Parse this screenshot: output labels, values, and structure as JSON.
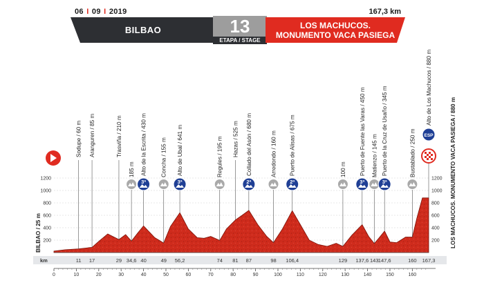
{
  "header": {
    "date_day": "06",
    "date_month": "09",
    "date_year": "2019",
    "distance": "167,3 km",
    "start_city": "BILBAO",
    "stage_number": "13",
    "stage_label": "ETAPA / STAGE",
    "finish_line1": "LOS MACHUCOS.",
    "finish_line2": "MONUMENTO VACA PASIEGA"
  },
  "start_label": "BILBAO / 25 m",
  "finish_label": "LOS MACHUCOS. MONUMENTO VACA PASIEGA / 880 m",
  "y_axis_ticks": [
    "1200",
    "1000",
    "800",
    "600",
    "400",
    "200"
  ],
  "x_axis_ticks": [
    "0",
    "10",
    "20",
    "30",
    "40",
    "50",
    "60",
    "70",
    "80",
    "90",
    "100",
    "110",
    "120",
    "130",
    "140",
    "150",
    "160"
  ],
  "km_row_label": "km",
  "km_points": [
    "11",
    "17",
    "29",
    "34,6",
    "40",
    "49",
    "56,2",
    "74",
    "81",
    "87",
    "98",
    "106,4",
    "129",
    "137,6",
    "143",
    "147,6",
    "160",
    "167,3"
  ],
  "waypoints": [
    {
      "label": "Sodupe / 60 m",
      "type": "none"
    },
    {
      "label": "Aranguren / 85 m",
      "type": "none"
    },
    {
      "label": "Trasviña / 210 m",
      "type": "none"
    },
    {
      "label": "185 m",
      "type": "gray"
    },
    {
      "label": "Alto de la Escrita / 430 m",
      "type": "cat3"
    },
    {
      "label": "Concha / 155 m",
      "type": "gray"
    },
    {
      "label": "Alto de Ubal / 641 m",
      "type": "cat3"
    },
    {
      "label": "Regules / 195 m",
      "type": "gray"
    },
    {
      "label": "Hazas / 525 m",
      "type": "none"
    },
    {
      "label": "Collado del Asón / 680 m",
      "type": "cat2"
    },
    {
      "label": "Arredondo / 160 m",
      "type": "gray"
    },
    {
      "label": "Puerto de Alisas / 675 m",
      "type": "cat2"
    },
    {
      "label": "100 m",
      "type": "gray"
    },
    {
      "label": "Puerto de Fuente las Varas / 450 m",
      "type": "cat3"
    },
    {
      "label": "Matienzo / 145 m",
      "type": "gray"
    },
    {
      "label": "Puerto de la Cruz de Usaño / 345 m",
      "type": "cat3"
    },
    {
      "label": "Bustablado / 250 m",
      "type": "gray"
    },
    {
      "label": "Alto de Los Machucos / 880 m",
      "type": "esp"
    }
  ],
  "badges": {
    "cat3": "3ª",
    "cat2": "2ª",
    "esp": "ESP"
  },
  "profile": {
    "x_km": [
      0,
      5,
      11,
      17,
      20,
      24,
      29,
      32,
      34.6,
      37.5,
      40,
      45,
      49,
      52,
      56.2,
      60,
      64,
      67,
      70,
      74,
      77,
      81,
      84,
      87,
      91,
      95,
      98,
      102,
      106.4,
      110,
      114,
      118,
      122,
      126,
      129,
      133,
      137.6,
      140.5,
      143,
      145,
      147.6,
      150,
      153,
      157,
      160,
      162,
      164.5,
      167.3
    ],
    "elev_m": [
      25,
      45,
      60,
      85,
      180,
      300,
      210,
      290,
      185,
      320,
      430,
      240,
      155,
      420,
      641,
      380,
      240,
      230,
      260,
      195,
      380,
      525,
      600,
      680,
      450,
      260,
      160,
      380,
      675,
      450,
      200,
      130,
      100,
      150,
      100,
      280,
      450,
      260,
      145,
      230,
      345,
      170,
      160,
      250,
      250,
      550,
      880,
      880
    ]
  },
  "colors": {
    "profile": "#cf2b1c",
    "profile_dark": "#7a1208",
    "banner_dark": "#2d2f33",
    "accent": "#e02b20",
    "badge_blue": "#1f3f95"
  }
}
